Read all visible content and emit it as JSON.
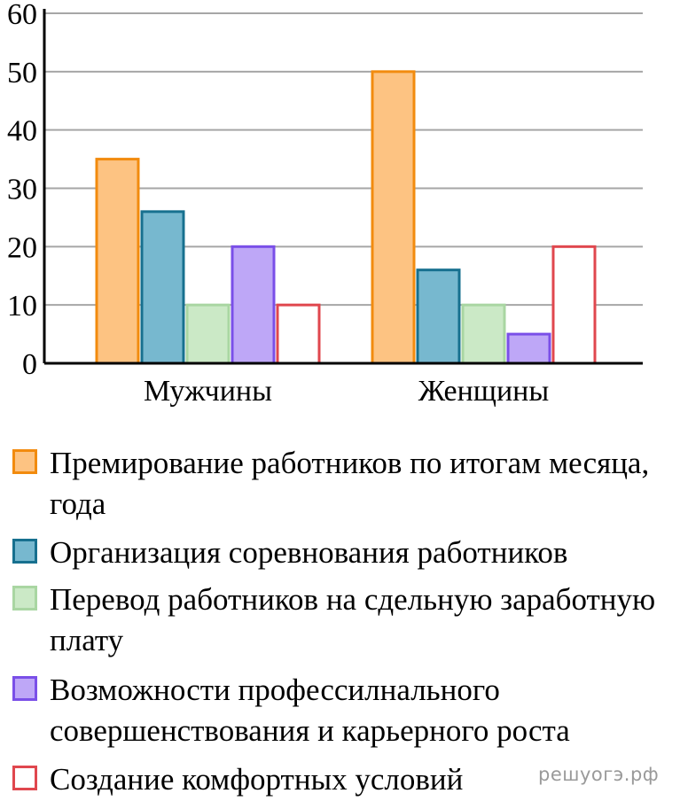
{
  "chart_data": {
    "type": "bar",
    "title": "",
    "xlabel": "",
    "ylabel": "",
    "categories": [
      "Мужчины",
      "Женщины"
    ],
    "ylim": [
      0,
      60
    ],
    "yticks": [
      0,
      10,
      20,
      30,
      40,
      50,
      60
    ],
    "grid": true,
    "legend_position": "bottom",
    "series": [
      {
        "name": "Премирование работников по итогам месяца, года",
        "values": [
          35,
          50
        ],
        "fill": "#fdc382",
        "stroke": "#f28b0e"
      },
      {
        "name": "Организация соревнования работников",
        "values": [
          26,
          16
        ],
        "fill": "#77b8cf",
        "stroke": "#17708f"
      },
      {
        "name": "Перевод работников на сдельную заработную плату",
        "values": [
          10,
          10
        ],
        "fill": "#cbe9c6",
        "stroke": "#a9d6a2"
      },
      {
        "name": "Возможности професcилнального совершенствования и карьерного роста",
        "values": [
          20,
          5
        ],
        "fill": "#bea7f7",
        "stroke": "#7a4fe8"
      },
      {
        "name": "Создание комфортных условий",
        "values": [
          10,
          20
        ],
        "fill": "#ffffff",
        "stroke": "#e0474e"
      }
    ]
  },
  "watermark": "решуогэ.рф"
}
